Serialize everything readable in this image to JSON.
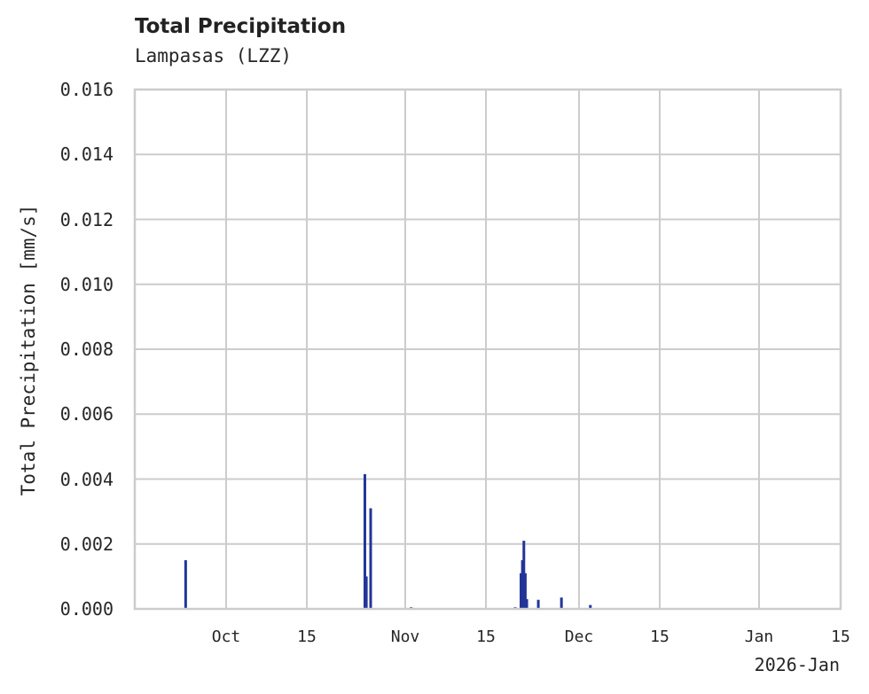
{
  "chart_data": {
    "type": "bar",
    "title": "Total Precipitation",
    "subtitle": "Lampasas (LZZ)",
    "xlabel": "",
    "ylabel": "Total Precipitation [mm/s]",
    "ylim": [
      0.0,
      0.016
    ],
    "yticks": [
      "0.000",
      "0.002",
      "0.004",
      "0.006",
      "0.008",
      "0.010",
      "0.012",
      "0.014",
      "0.016"
    ],
    "xticks": [
      "Oct",
      "15",
      "Nov",
      "15",
      "Dec",
      "15",
      "Jan",
      "15"
    ],
    "x_offset_label": "2026-Jan",
    "grid": true,
    "color": "#233597",
    "x": [
      "2025-09-24",
      "2025-10-25",
      "2025-10-25T06",
      "2025-10-26",
      "2025-11-02",
      "2025-11-20",
      "2025-11-21",
      "2025-11-21T06",
      "2025-11-21T12",
      "2025-11-21T18",
      "2025-11-22",
      "2025-11-24",
      "2025-11-28",
      "2025-12-03"
    ],
    "values": [
      0.0015,
      0.00415,
      0.001,
      0.0031,
      5e-05,
      5e-05,
      0.0011,
      0.0015,
      0.0021,
      0.0011,
      0.0003,
      0.00028,
      0.00035,
      0.00012
    ]
  }
}
